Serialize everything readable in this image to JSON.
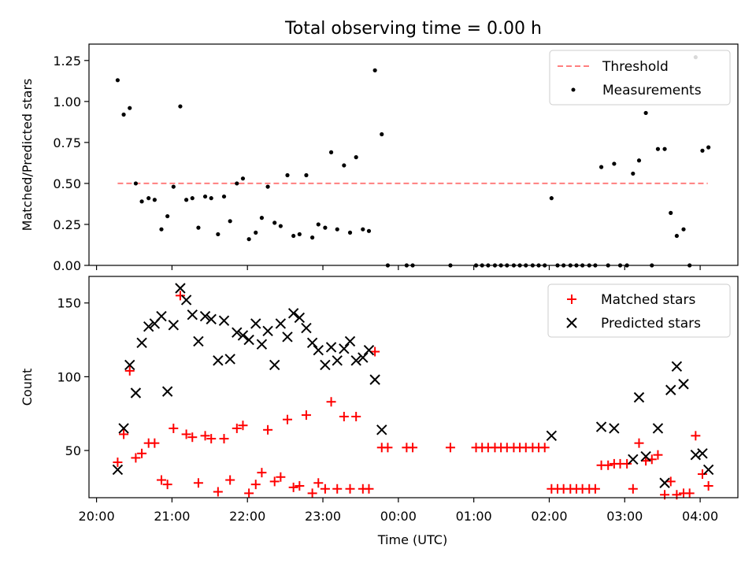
{
  "chart_data": {
    "title": "Total observing time = 0.00 h",
    "x_ticks": [
      "20:00",
      "21:00",
      "22:00",
      "23:00",
      "00:00",
      "01:00",
      "02:00",
      "03:00",
      "04:00"
    ],
    "xlabel": "Time (UTC)",
    "xlim": [
      -0.1,
      8.5
    ],
    "panels": [
      {
        "type": "scatter",
        "ylabel": "Matched/Predicted stars",
        "ylim": [
          0,
          1.35
        ],
        "y_ticks": [
          "0.00",
          "0.25",
          "0.50",
          "0.75",
          "1.00",
          "1.25"
        ],
        "y_tick_values": [
          0,
          0.25,
          0.5,
          0.75,
          1.0,
          1.25
        ],
        "legend": {
          "position": "upper right",
          "entries": [
            "Threshold",
            "Measurements"
          ]
        },
        "threshold": {
          "name": "Threshold",
          "x": [
            0.28,
            8.1
          ],
          "y": 0.5,
          "color": "#ff7f7f"
        },
        "series": [
          {
            "name": "Measurements",
            "color": "#000000",
            "points": [
              [
                0.28,
                1.13
              ],
              [
                0.36,
                0.92
              ],
              [
                0.44,
                0.96
              ],
              [
                0.52,
                0.5
              ],
              [
                0.6,
                0.39
              ],
              [
                0.69,
                0.41
              ],
              [
                0.77,
                0.4
              ],
              [
                0.86,
                0.22
              ],
              [
                0.94,
                0.3
              ],
              [
                1.02,
                0.48
              ],
              [
                1.11,
                0.97
              ],
              [
                1.19,
                0.4
              ],
              [
                1.27,
                0.41
              ],
              [
                1.35,
                0.23
              ],
              [
                1.44,
                0.42
              ],
              [
                1.52,
                0.41
              ],
              [
                1.61,
                0.19
              ],
              [
                1.69,
                0.42
              ],
              [
                1.77,
                0.27
              ],
              [
                1.86,
                0.5
              ],
              [
                1.94,
                0.53
              ],
              [
                2.02,
                0.16
              ],
              [
                2.11,
                0.2
              ],
              [
                2.19,
                0.29
              ],
              [
                2.27,
                0.48
              ],
              [
                2.36,
                0.26
              ],
              [
                2.44,
                0.24
              ],
              [
                2.53,
                0.55
              ],
              [
                2.61,
                0.18
              ],
              [
                2.69,
                0.19
              ],
              [
                2.78,
                0.55
              ],
              [
                2.86,
                0.17
              ],
              [
                2.94,
                0.25
              ],
              [
                3.03,
                0.23
              ],
              [
                3.11,
                0.69
              ],
              [
                3.19,
                0.22
              ],
              [
                3.28,
                0.61
              ],
              [
                3.36,
                0.2
              ],
              [
                3.44,
                0.66
              ],
              [
                3.53,
                0.22
              ],
              [
                3.61,
                0.21
              ],
              [
                3.69,
                1.19
              ],
              [
                3.78,
                0.8
              ],
              [
                3.86,
                0.0
              ],
              [
                4.11,
                0.0
              ],
              [
                4.19,
                0.0
              ],
              [
                4.69,
                0.0
              ],
              [
                5.03,
                0.0
              ],
              [
                5.11,
                0.0
              ],
              [
                5.19,
                0.0
              ],
              [
                5.28,
                0.0
              ],
              [
                5.36,
                0.0
              ],
              [
                5.44,
                0.0
              ],
              [
                5.53,
                0.0
              ],
              [
                5.61,
                0.0
              ],
              [
                5.69,
                0.0
              ],
              [
                5.78,
                0.0
              ],
              [
                5.86,
                0.0
              ],
              [
                5.94,
                0.0
              ],
              [
                6.03,
                0.41
              ],
              [
                6.11,
                0.0
              ],
              [
                6.19,
                0.0
              ],
              [
                6.28,
                0.0
              ],
              [
                6.36,
                0.0
              ],
              [
                6.44,
                0.0
              ],
              [
                6.53,
                0.0
              ],
              [
                6.61,
                0.0
              ],
              [
                6.69,
                0.6
              ],
              [
                6.78,
                0.0
              ],
              [
                6.86,
                0.62
              ],
              [
                6.94,
                0.0
              ],
              [
                7.03,
                0.0
              ],
              [
                7.11,
                0.56
              ],
              [
                7.19,
                0.64
              ],
              [
                7.28,
                0.93
              ],
              [
                7.36,
                0.0
              ],
              [
                7.44,
                0.71
              ],
              [
                7.53,
                0.71
              ],
              [
                7.61,
                0.32
              ],
              [
                7.69,
                0.18
              ],
              [
                7.78,
                0.22
              ],
              [
                7.86,
                0.0
              ],
              [
                7.94,
                1.27
              ],
              [
                8.03,
                0.7
              ],
              [
                8.11,
                0.72
              ]
            ]
          }
        ]
      },
      {
        "type": "scatter",
        "ylabel": "Count",
        "ylim": [
          18,
          168
        ],
        "y_ticks": [
          "50",
          "100",
          "150"
        ],
        "y_tick_values": [
          50,
          100,
          150
        ],
        "legend": {
          "position": "upper right",
          "entries": [
            "Matched stars",
            "Predicted stars"
          ]
        },
        "series": [
          {
            "name": "Matched stars",
            "marker": "+",
            "color": "#ff0000",
            "points": [
              [
                0.28,
                42
              ],
              [
                0.36,
                61
              ],
              [
                0.44,
                104
              ],
              [
                0.52,
                45
              ],
              [
                0.6,
                48
              ],
              [
                0.69,
                55
              ],
              [
                0.77,
                55
              ],
              [
                0.86,
                30
              ],
              [
                0.94,
                27
              ],
              [
                1.02,
                65
              ],
              [
                1.11,
                155
              ],
              [
                1.19,
                61
              ],
              [
                1.27,
                59
              ],
              [
                1.35,
                28
              ],
              [
                1.44,
                60
              ],
              [
                1.52,
                58
              ],
              [
                1.61,
                22
              ],
              [
                1.69,
                58
              ],
              [
                1.77,
                30
              ],
              [
                1.86,
                65
              ],
              [
                1.94,
                67
              ],
              [
                2.02,
                21
              ],
              [
                2.11,
                27
              ],
              [
                2.19,
                35
              ],
              [
                2.27,
                64
              ],
              [
                2.36,
                29
              ],
              [
                2.44,
                32
              ],
              [
                2.53,
                71
              ],
              [
                2.61,
                25
              ],
              [
                2.69,
                26
              ],
              [
                2.78,
                74
              ],
              [
                2.86,
                21
              ],
              [
                2.94,
                28
              ],
              [
                3.03,
                24
              ],
              [
                3.11,
                83
              ],
              [
                3.19,
                24
              ],
              [
                3.28,
                73
              ],
              [
                3.36,
                24
              ],
              [
                3.44,
                73
              ],
              [
                3.53,
                24
              ],
              [
                3.61,
                24
              ],
              [
                3.69,
                117
              ],
              [
                3.78,
                52
              ],
              [
                3.86,
                52
              ],
              [
                4.11,
                52
              ],
              [
                4.19,
                52
              ],
              [
                4.69,
                52
              ],
              [
                5.03,
                52
              ],
              [
                5.11,
                52
              ],
              [
                5.19,
                52
              ],
              [
                5.28,
                52
              ],
              [
                5.36,
                52
              ],
              [
                5.44,
                52
              ],
              [
                5.53,
                52
              ],
              [
                5.61,
                52
              ],
              [
                5.69,
                52
              ],
              [
                5.78,
                52
              ],
              [
                5.86,
                52
              ],
              [
                5.94,
                52
              ],
              [
                6.03,
                24
              ],
              [
                6.11,
                24
              ],
              [
                6.19,
                24
              ],
              [
                6.28,
                24
              ],
              [
                6.36,
                24
              ],
              [
                6.44,
                24
              ],
              [
                6.53,
                24
              ],
              [
                6.61,
                24
              ],
              [
                6.69,
                40
              ],
              [
                6.78,
                40
              ],
              [
                6.86,
                41
              ],
              [
                6.94,
                41
              ],
              [
                7.03,
                41
              ],
              [
                7.11,
                24
              ],
              [
                7.19,
                55
              ],
              [
                7.28,
                43
              ],
              [
                7.36,
                44
              ],
              [
                7.44,
                47
              ],
              [
                7.53,
                20
              ],
              [
                7.61,
                29
              ],
              [
                7.69,
                20
              ],
              [
                7.78,
                21
              ],
              [
                7.86,
                21
              ],
              [
                7.94,
                60
              ],
              [
                8.03,
                34
              ],
              [
                8.11,
                26
              ]
            ]
          },
          {
            "name": "Predicted stars",
            "marker": "x",
            "color": "#000000",
            "points": [
              [
                0.28,
                37
              ],
              [
                0.36,
                65
              ],
              [
                0.44,
                108
              ],
              [
                0.52,
                89
              ],
              [
                0.6,
                123
              ],
              [
                0.69,
                134
              ],
              [
                0.77,
                136
              ],
              [
                0.86,
                141
              ],
              [
                0.94,
                90
              ],
              [
                1.02,
                135
              ],
              [
                1.11,
                160
              ],
              [
                1.19,
                152
              ],
              [
                1.27,
                142
              ],
              [
                1.35,
                124
              ],
              [
                1.44,
                141
              ],
              [
                1.52,
                139
              ],
              [
                1.61,
                111
              ],
              [
                1.69,
                138
              ],
              [
                1.77,
                112
              ],
              [
                1.86,
                130
              ],
              [
                1.94,
                128
              ],
              [
                2.02,
                125
              ],
              [
                2.11,
                136
              ],
              [
                2.19,
                122
              ],
              [
                2.27,
                131
              ],
              [
                2.36,
                108
              ],
              [
                2.44,
                136
              ],
              [
                2.53,
                127
              ],
              [
                2.61,
                143
              ],
              [
                2.69,
                140
              ],
              [
                2.78,
                133
              ],
              [
                2.86,
                123
              ],
              [
                2.94,
                118
              ],
              [
                3.03,
                108
              ],
              [
                3.11,
                120
              ],
              [
                3.19,
                111
              ],
              [
                3.28,
                119
              ],
              [
                3.36,
                124
              ],
              [
                3.44,
                111
              ],
              [
                3.53,
                113
              ],
              [
                3.61,
                118
              ],
              [
                3.69,
                98
              ],
              [
                3.78,
                64
              ],
              [
                6.03,
                60
              ],
              [
                6.69,
                66
              ],
              [
                6.86,
                65
              ],
              [
                7.11,
                44
              ],
              [
                7.19,
                86
              ],
              [
                7.28,
                46
              ],
              [
                7.44,
                65
              ],
              [
                7.53,
                28
              ],
              [
                7.61,
                91
              ],
              [
                7.69,
                107
              ],
              [
                7.78,
                95
              ],
              [
                7.94,
                47
              ],
              [
                8.03,
                48
              ],
              [
                8.11,
                37
              ]
            ]
          }
        ]
      }
    ]
  }
}
